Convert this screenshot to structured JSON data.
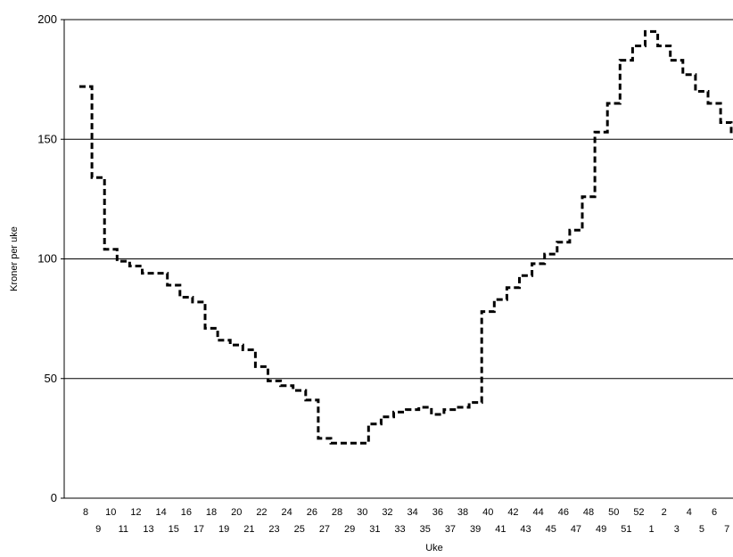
{
  "chart_data": {
    "type": "line",
    "title": "",
    "xlabel": "Uke",
    "ylabel": "Kroner per uke",
    "ylim": [
      0,
      200
    ],
    "yticks": [
      0,
      50,
      100,
      150,
      200
    ],
    "grid": "horizontal",
    "line_style": "dashed-step",
    "line_color": "#000000",
    "categories": [
      "8",
      "9",
      "10",
      "11",
      "12",
      "13",
      "14",
      "15",
      "16",
      "17",
      "18",
      "19",
      "20",
      "21",
      "22",
      "23",
      "24",
      "25",
      "26",
      "27",
      "28",
      "29",
      "30",
      "31",
      "32",
      "33",
      "34",
      "35",
      "36",
      "37",
      "38",
      "39",
      "40",
      "41",
      "42",
      "43",
      "44",
      "45",
      "46",
      "47",
      "48",
      "49",
      "50",
      "51",
      "52",
      "1",
      "2",
      "3",
      "4",
      "5",
      "6",
      "7",
      "8"
    ],
    "values": [
      172,
      134,
      104,
      99,
      97,
      94,
      94,
      89,
      84,
      82,
      71,
      66,
      64,
      62,
      55,
      49,
      47,
      45,
      41,
      25,
      23,
      23,
      23,
      31,
      34,
      36,
      37,
      38,
      35,
      37,
      38,
      40,
      78,
      83,
      88,
      93,
      98,
      102,
      107,
      112,
      126,
      153,
      165,
      183,
      189,
      195,
      189,
      183,
      177,
      170,
      165,
      157,
      152
    ]
  }
}
